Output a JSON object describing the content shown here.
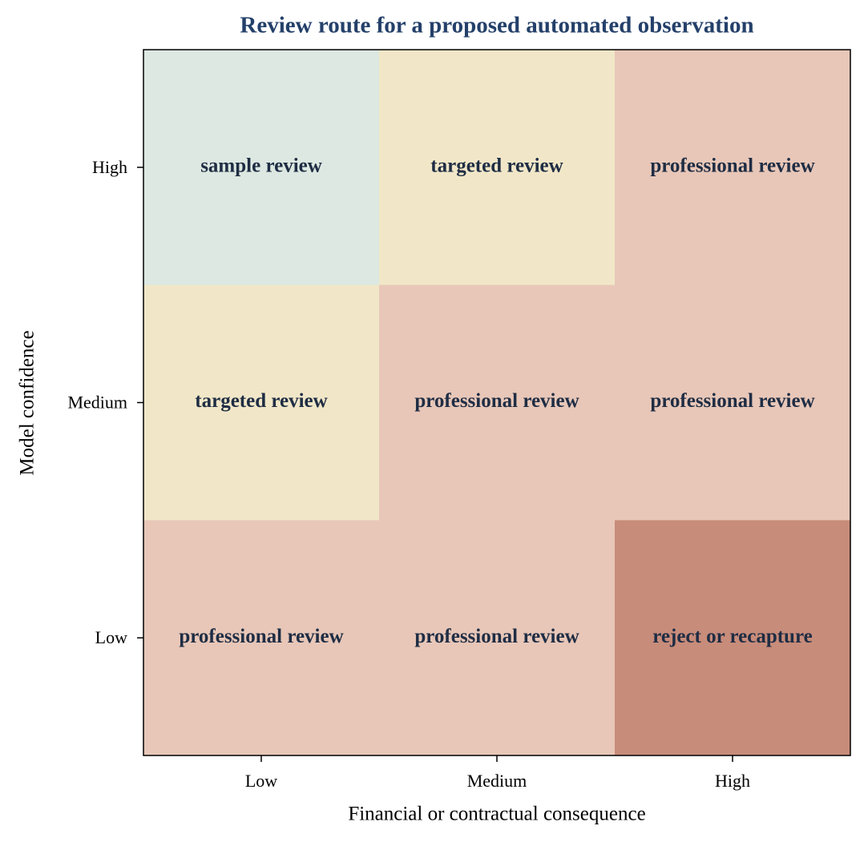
{
  "chart_data": {
    "type": "heatmap",
    "title": "Review route for a proposed automated observation",
    "x_label": "Financial or contractual consequence",
    "y_label": "Model confidence",
    "x_categories": [
      "Low",
      "Medium",
      "High"
    ],
    "y_categories": [
      "High",
      "Medium",
      "Low"
    ],
    "cell_labels": [
      [
        "sample review",
        "targeted review",
        "professional review"
      ],
      [
        "targeted review",
        "professional review",
        "professional review"
      ],
      [
        "professional review",
        "professional review",
        "reject or recapture"
      ]
    ],
    "cell_colors": [
      [
        "#dce8e1",
        "#f1e7c8",
        "#e8c7b8"
      ],
      [
        "#f1e7c8",
        "#e8c7b8",
        "#e8c7b8"
      ],
      [
        "#e8c7b8",
        "#e8c7b8",
        "#c88c7a"
      ]
    ],
    "title_color": "#24406a",
    "label_color": "#1f2d44"
  }
}
